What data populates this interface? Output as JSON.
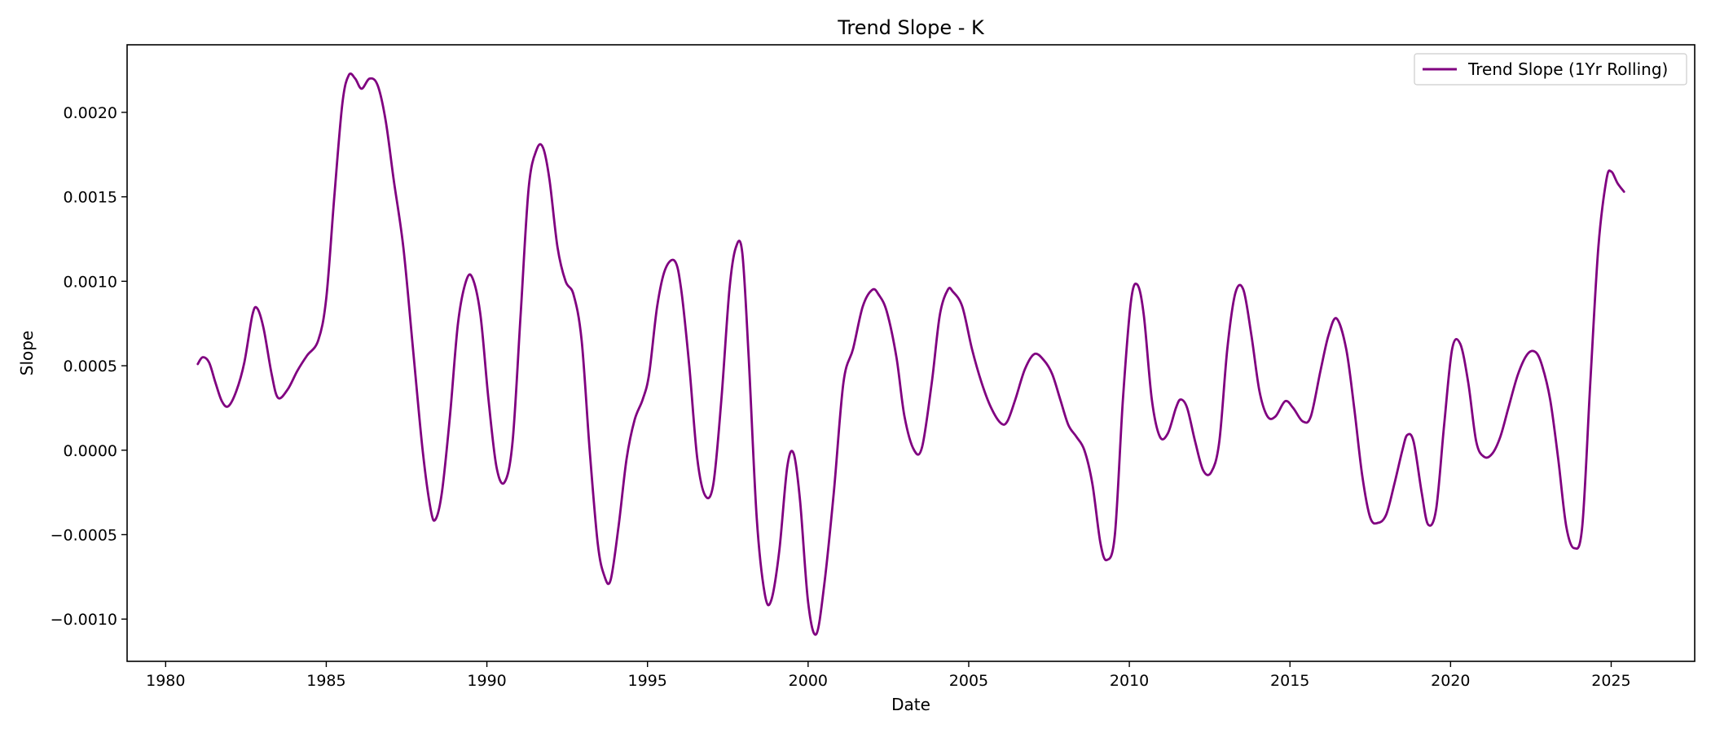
{
  "chart_data": {
    "type": "line",
    "title": "Trend Slope - K",
    "xlabel": "Date",
    "ylabel": "Slope",
    "xlim": [
      1978.8,
      2027.6
    ],
    "ylim": [
      -0.00125,
      0.0024
    ],
    "x_ticks": [
      1980,
      1985,
      1990,
      1995,
      2000,
      2005,
      2010,
      2015,
      2020,
      2025
    ],
    "x_tick_labels": [
      "1980",
      "1985",
      "1990",
      "1995",
      "2000",
      "2005",
      "2010",
      "2015",
      "2020",
      "2025"
    ],
    "y_ticks": [
      -0.001,
      -0.0005,
      0.0,
      0.0005,
      0.001,
      0.0015,
      0.002
    ],
    "y_tick_labels": [
      "−0.0010",
      "−0.0005",
      "0.0000",
      "0.0005",
      "0.0010",
      "0.0015",
      "0.0020"
    ],
    "grid": false,
    "legend_position": "upper right",
    "series": [
      {
        "name": "Trend Slope (1Yr Rolling)",
        "color": "#800080",
        "x": [
          1981.0,
          1981.15,
          1981.35,
          1981.55,
          1981.75,
          1981.95,
          1982.2,
          1982.45,
          1982.7,
          1982.85,
          1983.05,
          1983.3,
          1983.5,
          1983.8,
          1984.1,
          1984.4,
          1984.75,
          1985.0,
          1985.25,
          1985.5,
          1985.7,
          1985.9,
          1986.1,
          1986.35,
          1986.6,
          1986.85,
          1987.1,
          1987.4,
          1987.7,
          1988.0,
          1988.25,
          1988.4,
          1988.6,
          1988.85,
          1989.1,
          1989.35,
          1989.55,
          1989.8,
          1990.05,
          1990.3,
          1990.55,
          1990.8,
          1991.05,
          1991.3,
          1991.55,
          1991.75,
          1991.95,
          1992.2,
          1992.45,
          1992.7,
          1992.95,
          1993.2,
          1993.45,
          1993.65,
          1993.85,
          1994.1,
          1994.35,
          1994.6,
          1994.85,
          1995.05,
          1995.3,
          1995.55,
          1995.85,
          1996.05,
          1996.3,
          1996.55,
          1996.8,
          1997.05,
          1997.3,
          1997.55,
          1997.75,
          1997.95,
          1998.15,
          1998.4,
          1998.65,
          1998.85,
          1999.1,
          1999.35,
          1999.55,
          1999.75,
          2000.0,
          2000.25,
          2000.5,
          2000.8,
          2001.1,
          2001.4,
          2001.7,
          2002.0,
          2002.2,
          2002.45,
          2002.75,
          2003.0,
          2003.3,
          2003.55,
          2003.85,
          2004.1,
          2004.35,
          2004.5,
          2004.8,
          2005.1,
          2005.4,
          2005.7,
          2006.0,
          2006.2,
          2006.45,
          2006.75,
          2007.05,
          2007.35,
          2007.6,
          2007.85,
          2008.1,
          2008.35,
          2008.6,
          2008.85,
          2009.1,
          2009.3,
          2009.55,
          2009.8,
          2010.05,
          2010.25,
          2010.45,
          2010.7,
          2010.95,
          2011.2,
          2011.45,
          2011.6,
          2011.8,
          2012.05,
          2012.3,
          2012.55,
          2012.8,
          2013.05,
          2013.3,
          2013.55,
          2013.8,
          2014.05,
          2014.3,
          2014.55,
          2014.85,
          2015.1,
          2015.4,
          2015.65,
          2015.95,
          2016.2,
          2016.45,
          2016.75,
          2017.0,
          2017.25,
          2017.5,
          2017.75,
          2018.0,
          2018.25,
          2018.5,
          2018.65,
          2018.85,
          2019.1,
          2019.3,
          2019.55,
          2019.8,
          2020.05,
          2020.3,
          2020.55,
          2020.8,
          2021.05,
          2021.3,
          2021.55,
          2021.8,
          2022.1,
          2022.4,
          2022.65,
          2022.85,
          2023.1,
          2023.35,
          2023.6,
          2023.85,
          2024.1,
          2024.35,
          2024.6,
          2024.85,
          2025.0,
          2025.2,
          2025.4
        ],
        "y": [
          0.00051,
          0.00055,
          0.00052,
          0.0004,
          0.00029,
          0.00026,
          0.00035,
          0.00052,
          0.0008,
          0.00084,
          0.00072,
          0.00045,
          0.00031,
          0.00036,
          0.00047,
          0.00056,
          0.00065,
          0.0009,
          0.0015,
          0.00205,
          0.00222,
          0.0022,
          0.00214,
          0.0022,
          0.00216,
          0.00195,
          0.0016,
          0.0012,
          0.0006,
          0.0,
          -0.00035,
          -0.00041,
          -0.00025,
          0.0002,
          0.00075,
          0.001,
          0.00102,
          0.0008,
          0.0003,
          -0.0001,
          -0.00019,
          5e-05,
          0.0008,
          0.00155,
          0.00178,
          0.00179,
          0.0016,
          0.0012,
          0.001,
          0.00092,
          0.00065,
          0.0,
          -0.00055,
          -0.00074,
          -0.00077,
          -0.00045,
          -5e-05,
          0.00018,
          0.0003,
          0.00045,
          0.00085,
          0.00107,
          0.00112,
          0.00095,
          0.0005,
          -5e-05,
          -0.00027,
          -0.0002,
          0.0003,
          0.00095,
          0.0012,
          0.00117,
          0.00055,
          -0.0004,
          -0.00085,
          -0.00089,
          -0.0006,
          -0.0001,
          -2e-05,
          -0.0003,
          -0.0009,
          -0.00109,
          -0.0008,
          -0.00025,
          0.0004,
          0.0006,
          0.00085,
          0.00095,
          0.00092,
          0.00082,
          0.00055,
          0.0002,
          0.0,
          2e-05,
          0.0004,
          0.0008,
          0.00095,
          0.00094,
          0.00085,
          0.0006,
          0.0004,
          0.00025,
          0.00016,
          0.00017,
          0.0003,
          0.00048,
          0.00057,
          0.00053,
          0.00045,
          0.0003,
          0.00015,
          8e-05,
          0.0,
          -0.0002,
          -0.00055,
          -0.00065,
          -0.0005,
          0.0003,
          0.00088,
          0.00098,
          0.0008,
          0.0003,
          8e-05,
          0.0001,
          0.00025,
          0.0003,
          0.00025,
          5e-05,
          -0.00012,
          -0.00013,
          5e-05,
          0.0006,
          0.00093,
          0.00095,
          0.00068,
          0.00035,
          0.0002,
          0.0002,
          0.00029,
          0.00025,
          0.00017,
          0.0002,
          0.00047,
          0.00068,
          0.00078,
          0.0006,
          0.00025,
          -0.00015,
          -0.0004,
          -0.00043,
          -0.00038,
          -0.0002,
          0.0,
          9e-05,
          5e-05,
          -0.00025,
          -0.00044,
          -0.00035,
          0.00015,
          0.0006,
          0.00063,
          0.0004,
          5e-05,
          -4e-05,
          -2e-05,
          8e-05,
          0.00025,
          0.00045,
          0.00057,
          0.00058,
          0.0005,
          0.0003,
          -5e-05,
          -0.00045,
          -0.00058,
          -0.00045,
          0.0004,
          0.0012,
          0.0016,
          0.00165,
          0.00158,
          0.00153
        ]
      }
    ]
  }
}
